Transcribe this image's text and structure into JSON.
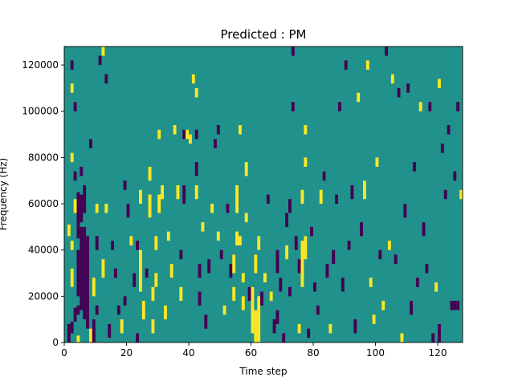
{
  "chart_data": {
    "type": "heatmap",
    "title": "Predicted : PM",
    "xlabel": "Time step",
    "ylabel": "Frequency (Hz)",
    "xlim": [
      0,
      128
    ],
    "ylim": [
      0,
      128000
    ],
    "xticks": [
      0,
      20,
      40,
      60,
      80,
      100,
      120
    ],
    "yticks": [
      0,
      20000,
      40000,
      60000,
      80000,
      100000,
      120000
    ],
    "xtick_labels": [
      "0",
      "20",
      "40",
      "60",
      "80",
      "100",
      "120"
    ],
    "ytick_labels": [
      "0",
      "20000",
      "40000",
      "60000",
      "80000",
      "100000",
      "120000"
    ],
    "grid": false,
    "colormap": "viridis",
    "background_value": 0,
    "value_colors": {
      "-1": "#440154",
      "0": "#21918c",
      "1": "#fde725"
    },
    "cells": [
      {
        "x": 1,
        "y": 0,
        "w": 1,
        "h": 8000,
        "v": -1
      },
      {
        "x": 2,
        "y": 4000,
        "w": 1,
        "h": 5000,
        "v": -1
      },
      {
        "x": 3,
        "y": 9000,
        "w": 1,
        "h": 6000,
        "v": -1
      },
      {
        "x": 4,
        "y": 0,
        "w": 1,
        "h": 3000,
        "v": 1
      },
      {
        "x": 4,
        "y": 12000,
        "w": 1,
        "h": 4000,
        "v": -1
      },
      {
        "x": 4,
        "y": 20000,
        "w": 1,
        "h": 20000,
        "v": -1
      },
      {
        "x": 4,
        "y": 45000,
        "w": 1,
        "h": 20000,
        "v": -1
      },
      {
        "x": 5,
        "y": 14000,
        "w": 1,
        "h": 36000,
        "v": -1
      },
      {
        "x": 5,
        "y": 52000,
        "w": 1,
        "h": 12000,
        "v": -1
      },
      {
        "x": 6,
        "y": 10000,
        "w": 1,
        "h": 40000,
        "v": -1
      },
      {
        "x": 6,
        "y": 56000,
        "w": 1,
        "h": 12000,
        "v": -1
      },
      {
        "x": 7,
        "y": 6000,
        "w": 1,
        "h": 40000,
        "v": -1
      },
      {
        "x": 2,
        "y": 24000,
        "w": 1,
        "h": 8000,
        "v": 1
      },
      {
        "x": 1,
        "y": 46000,
        "w": 1,
        "h": 5000,
        "v": 1
      },
      {
        "x": 2,
        "y": 40000,
        "w": 1,
        "h": 4000,
        "v": 1
      },
      {
        "x": 3,
        "y": 56000,
        "w": 1,
        "h": 6000,
        "v": 1
      },
      {
        "x": 5,
        "y": 72000,
        "w": 1,
        "h": 4000,
        "v": -1
      },
      {
        "x": 2,
        "y": 78000,
        "w": 1,
        "h": 4000,
        "v": 1
      },
      {
        "x": 3,
        "y": 70000,
        "w": 1,
        "h": 4000,
        "v": -1
      },
      {
        "x": 3,
        "y": 100000,
        "w": 1,
        "h": 4000,
        "v": -1
      },
      {
        "x": 2,
        "y": 108000,
        "w": 1,
        "h": 4000,
        "v": 1
      },
      {
        "x": 2,
        "y": 118000,
        "w": 1,
        "h": 4000,
        "v": -1
      },
      {
        "x": 8,
        "y": 0,
        "w": 1,
        "h": 6000,
        "v": 1
      },
      {
        "x": 9,
        "y": 0,
        "w": 1,
        "h": 10000,
        "v": -1
      },
      {
        "x": 9,
        "y": 20000,
        "w": 1,
        "h": 8000,
        "v": 1
      },
      {
        "x": 10,
        "y": 12000,
        "w": 1,
        "h": 4000,
        "v": -1
      },
      {
        "x": 10,
        "y": 40000,
        "w": 1,
        "h": 6000,
        "v": -1
      },
      {
        "x": 10,
        "y": 56000,
        "w": 1,
        "h": 4000,
        "v": 1
      },
      {
        "x": 8,
        "y": 84000,
        "w": 1,
        "h": 4000,
        "v": -1
      },
      {
        "x": 11,
        "y": 120000,
        "w": 1,
        "h": 4000,
        "v": -1
      },
      {
        "x": 12,
        "y": 124000,
        "w": 1,
        "h": 4000,
        "v": 1
      },
      {
        "x": 13,
        "y": 112000,
        "w": 1,
        "h": 4000,
        "v": -1
      },
      {
        "x": 13,
        "y": 56000,
        "w": 1,
        "h": 4000,
        "v": 1
      },
      {
        "x": 12,
        "y": 28000,
        "w": 1,
        "h": 8000,
        "v": 1
      },
      {
        "x": 14,
        "y": 2000,
        "w": 1,
        "h": 6000,
        "v": -1
      },
      {
        "x": 15,
        "y": 40000,
        "w": 1,
        "h": 4000,
        "v": -1
      },
      {
        "x": 16,
        "y": 28000,
        "w": 1,
        "h": 4000,
        "v": -1
      },
      {
        "x": 17,
        "y": 12000,
        "w": 1,
        "h": 4000,
        "v": -1
      },
      {
        "x": 18,
        "y": 4000,
        "w": 1,
        "h": 6000,
        "v": 1
      },
      {
        "x": 19,
        "y": 16000,
        "w": 1,
        "h": 4000,
        "v": -1
      },
      {
        "x": 19,
        "y": 66000,
        "w": 1,
        "h": 4000,
        "v": -1
      },
      {
        "x": 20,
        "y": 54000,
        "w": 1,
        "h": 6000,
        "v": -1
      },
      {
        "x": 21,
        "y": 42000,
        "w": 1,
        "h": 4000,
        "v": 1
      },
      {
        "x": 22,
        "y": 24000,
        "w": 1,
        "h": 6000,
        "v": -1
      },
      {
        "x": 23,
        "y": 40000,
        "w": 1,
        "h": 4000,
        "v": -1
      },
      {
        "x": 23,
        "y": 0,
        "w": 1,
        "h": 4000,
        "v": -1
      },
      {
        "x": 24,
        "y": 22000,
        "w": 1,
        "h": 18000,
        "v": 1
      },
      {
        "x": 24,
        "y": 60000,
        "w": 1,
        "h": 6000,
        "v": 1
      },
      {
        "x": 25,
        "y": 10000,
        "w": 1,
        "h": 8000,
        "v": 1
      },
      {
        "x": 26,
        "y": 28000,
        "w": 1,
        "h": 4000,
        "v": -1
      },
      {
        "x": 27,
        "y": 54000,
        "w": 1,
        "h": 10000,
        "v": 1
      },
      {
        "x": 27,
        "y": 70000,
        "w": 1,
        "h": 6000,
        "v": 1
      },
      {
        "x": 28,
        "y": 4000,
        "w": 1,
        "h": 6000,
        "v": 1
      },
      {
        "x": 28,
        "y": 18000,
        "w": 1,
        "h": 6000,
        "v": 1
      },
      {
        "x": 29,
        "y": 40000,
        "w": 1,
        "h": 6000,
        "v": 1
      },
      {
        "x": 29,
        "y": 24000,
        "w": 1,
        "h": 6000,
        "v": 1
      },
      {
        "x": 30,
        "y": 56000,
        "w": 1,
        "h": 8000,
        "v": 1
      },
      {
        "x": 30,
        "y": 88000,
        "w": 1,
        "h": 4000,
        "v": 1
      },
      {
        "x": 31,
        "y": 62000,
        "w": 1,
        "h": 6000,
        "v": 1
      },
      {
        "x": 32,
        "y": 10000,
        "w": 1,
        "h": 6000,
        "v": 1
      },
      {
        "x": 33,
        "y": 44000,
        "w": 1,
        "h": 4000,
        "v": 1
      },
      {
        "x": 34,
        "y": 28000,
        "w": 1,
        "h": 6000,
        "v": 1
      },
      {
        "x": 35,
        "y": 90000,
        "w": 1,
        "h": 4000,
        "v": 1
      },
      {
        "x": 36,
        "y": 62000,
        "w": 1,
        "h": 6000,
        "v": 1
      },
      {
        "x": 37,
        "y": 18000,
        "w": 1,
        "h": 6000,
        "v": 1
      },
      {
        "x": 37,
        "y": 36000,
        "w": 1,
        "h": 4000,
        "v": -1
      },
      {
        "x": 38,
        "y": 60000,
        "w": 1,
        "h": 8000,
        "v": -1
      },
      {
        "x": 38,
        "y": 88000,
        "w": 1,
        "h": 4000,
        "v": -1
      },
      {
        "x": 39,
        "y": 88000,
        "w": 1,
        "h": 4000,
        "v": 1
      },
      {
        "x": 40,
        "y": 86000,
        "w": 1,
        "h": 4000,
        "v": 1
      },
      {
        "x": 41,
        "y": 112000,
        "w": 1,
        "h": 4000,
        "v": 1
      },
      {
        "x": 42,
        "y": 106000,
        "w": 1,
        "h": 4000,
        "v": 1
      },
      {
        "x": 42,
        "y": 88000,
        "w": 1,
        "h": 4000,
        "v": -1
      },
      {
        "x": 42,
        "y": 72000,
        "w": 1,
        "h": 6000,
        "v": -1
      },
      {
        "x": 42,
        "y": 62000,
        "w": 1,
        "h": 6000,
        "v": 1
      },
      {
        "x": 43,
        "y": 28000,
        "w": 1,
        "h": 6000,
        "v": -1
      },
      {
        "x": 43,
        "y": 16000,
        "w": 1,
        "h": 6000,
        "v": -1
      },
      {
        "x": 44,
        "y": 48000,
        "w": 1,
        "h": 4000,
        "v": 1
      },
      {
        "x": 45,
        "y": 6000,
        "w": 1,
        "h": 6000,
        "v": -1
      },
      {
        "x": 46,
        "y": 30000,
        "w": 1,
        "h": 6000,
        "v": -1
      },
      {
        "x": 47,
        "y": 56000,
        "w": 1,
        "h": 4000,
        "v": 1
      },
      {
        "x": 48,
        "y": 84000,
        "w": 1,
        "h": 4000,
        "v": -1
      },
      {
        "x": 49,
        "y": 44000,
        "w": 1,
        "h": 4000,
        "v": 1
      },
      {
        "x": 49,
        "y": 90000,
        "w": 1,
        "h": 4000,
        "v": -1
      },
      {
        "x": 50,
        "y": 36000,
        "w": 1,
        "h": 4000,
        "v": -1
      },
      {
        "x": 51,
        "y": 12000,
        "w": 1,
        "h": 4000,
        "v": 1
      },
      {
        "x": 52,
        "y": 56000,
        "w": 1,
        "h": 4000,
        "v": -1
      },
      {
        "x": 53,
        "y": 28000,
        "w": 1,
        "h": 6000,
        "v": -1
      },
      {
        "x": 54,
        "y": 18000,
        "w": 1,
        "h": 6000,
        "v": 1
      },
      {
        "x": 54,
        "y": 30000,
        "w": 1,
        "h": 8000,
        "v": 1
      },
      {
        "x": 55,
        "y": 42000,
        "w": 1,
        "h": 6000,
        "v": 1
      },
      {
        "x": 55,
        "y": 56000,
        "w": 1,
        "h": 12000,
        "v": 1
      },
      {
        "x": 56,
        "y": 42000,
        "w": 1,
        "h": 4000,
        "v": 1
      },
      {
        "x": 56,
        "y": 90000,
        "w": 1,
        "h": 4000,
        "v": 1
      },
      {
        "x": 57,
        "y": 14000,
        "w": 1,
        "h": 6000,
        "v": 1
      },
      {
        "x": 57,
        "y": 26000,
        "w": 1,
        "h": 4000,
        "v": 1
      },
      {
        "x": 58,
        "y": 52000,
        "w": 1,
        "h": 4000,
        "v": 1
      },
      {
        "x": 58,
        "y": 72000,
        "w": 1,
        "h": 6000,
        "v": 1
      },
      {
        "x": 59,
        "y": 18000,
        "w": 1,
        "h": 6000,
        "v": -1
      },
      {
        "x": 60,
        "y": 4000,
        "w": 1,
        "h": 20000,
        "v": 1
      },
      {
        "x": 61,
        "y": 0,
        "w": 1,
        "h": 14000,
        "v": 1
      },
      {
        "x": 61,
        "y": 30000,
        "w": 1,
        "h": 8000,
        "v": 1
      },
      {
        "x": 62,
        "y": 0,
        "w": 1,
        "h": 20000,
        "v": 1
      },
      {
        "x": 62,
        "y": 40000,
        "w": 1,
        "h": 6000,
        "v": 1
      },
      {
        "x": 63,
        "y": 16000,
        "w": 1,
        "h": 6000,
        "v": -1
      },
      {
        "x": 64,
        "y": 26000,
        "w": 1,
        "h": 4000,
        "v": 1
      },
      {
        "x": 65,
        "y": 60000,
        "w": 1,
        "h": 4000,
        "v": -1
      },
      {
        "x": 66,
        "y": 18000,
        "w": 1,
        "h": 4000,
        "v": 1
      },
      {
        "x": 67,
        "y": 4000,
        "w": 1,
        "h": 6000,
        "v": -1
      },
      {
        "x": 68,
        "y": 8000,
        "w": 1,
        "h": 6000,
        "v": -1
      },
      {
        "x": 68,
        "y": 30000,
        "w": 1,
        "h": 10000,
        "v": -1
      },
      {
        "x": 69,
        "y": 22000,
        "w": 1,
        "h": 6000,
        "v": -1
      },
      {
        "x": 70,
        "y": 0,
        "w": 1,
        "h": 4000,
        "v": -1
      },
      {
        "x": 71,
        "y": 36000,
        "w": 1,
        "h": 6000,
        "v": 1
      },
      {
        "x": 71,
        "y": 50000,
        "w": 1,
        "h": 6000,
        "v": -1
      },
      {
        "x": 72,
        "y": 56000,
        "w": 1,
        "h": 6000,
        "v": -1
      },
      {
        "x": 72,
        "y": 20000,
        "w": 1,
        "h": 4000,
        "v": -1
      },
      {
        "x": 73,
        "y": 100000,
        "w": 1,
        "h": 4000,
        "v": -1
      },
      {
        "x": 73,
        "y": 124000,
        "w": 1,
        "h": 4000,
        "v": -1
      },
      {
        "x": 74,
        "y": 40000,
        "w": 1,
        "h": 6000,
        "v": -1
      },
      {
        "x": 75,
        "y": 4000,
        "w": 1,
        "h": 4000,
        "v": 1
      },
      {
        "x": 75,
        "y": 30000,
        "w": 1,
        "h": 6000,
        "v": -1
      },
      {
        "x": 76,
        "y": 24000,
        "w": 1,
        "h": 20000,
        "v": 1
      },
      {
        "x": 76,
        "y": 60000,
        "w": 1,
        "h": 6000,
        "v": 1
      },
      {
        "x": 77,
        "y": 36000,
        "w": 1,
        "h": 10000,
        "v": 1
      },
      {
        "x": 77,
        "y": 76000,
        "w": 1,
        "h": 4000,
        "v": 1
      },
      {
        "x": 77,
        "y": 90000,
        "w": 1,
        "h": 4000,
        "v": 1
      },
      {
        "x": 78,
        "y": 2000,
        "w": 1,
        "h": 4000,
        "v": -1
      },
      {
        "x": 79,
        "y": 46000,
        "w": 1,
        "h": 4000,
        "v": -1
      },
      {
        "x": 80,
        "y": 22000,
        "w": 1,
        "h": 4000,
        "v": -1
      },
      {
        "x": 81,
        "y": 12000,
        "w": 1,
        "h": 4000,
        "v": -1
      },
      {
        "x": 82,
        "y": 60000,
        "w": 1,
        "h": 6000,
        "v": 1
      },
      {
        "x": 83,
        "y": 70000,
        "w": 1,
        "h": 4000,
        "v": -1
      },
      {
        "x": 84,
        "y": 28000,
        "w": 1,
        "h": 6000,
        "v": -1
      },
      {
        "x": 85,
        "y": 4000,
        "w": 1,
        "h": 4000,
        "v": 1
      },
      {
        "x": 86,
        "y": 34000,
        "w": 1,
        "h": 6000,
        "v": -1
      },
      {
        "x": 87,
        "y": 60000,
        "w": 1,
        "h": 4000,
        "v": -1
      },
      {
        "x": 88,
        "y": 100000,
        "w": 1,
        "h": 4000,
        "v": -1
      },
      {
        "x": 89,
        "y": 22000,
        "w": 1,
        "h": 6000,
        "v": -1
      },
      {
        "x": 90,
        "y": 118000,
        "w": 1,
        "h": 4000,
        "v": -1
      },
      {
        "x": 91,
        "y": 40000,
        "w": 1,
        "h": 4000,
        "v": -1
      },
      {
        "x": 92,
        "y": 62000,
        "w": 1,
        "h": 6000,
        "v": -1
      },
      {
        "x": 93,
        "y": 4000,
        "w": 1,
        "h": 6000,
        "v": -1
      },
      {
        "x": 94,
        "y": 104000,
        "w": 1,
        "h": 4000,
        "v": 1
      },
      {
        "x": 95,
        "y": 46000,
        "w": 1,
        "h": 6000,
        "v": -1
      },
      {
        "x": 96,
        "y": 62000,
        "w": 1,
        "h": 8000,
        "v": 1
      },
      {
        "x": 97,
        "y": 118000,
        "w": 1,
        "h": 4000,
        "v": 1
      },
      {
        "x": 98,
        "y": 24000,
        "w": 1,
        "h": 4000,
        "v": 1
      },
      {
        "x": 99,
        "y": 8000,
        "w": 1,
        "h": 4000,
        "v": 1
      },
      {
        "x": 100,
        "y": 76000,
        "w": 1,
        "h": 4000,
        "v": 1
      },
      {
        "x": 101,
        "y": 36000,
        "w": 1,
        "h": 4000,
        "v": -1
      },
      {
        "x": 102,
        "y": 14000,
        "w": 1,
        "h": 4000,
        "v": 1
      },
      {
        "x": 103,
        "y": 124000,
        "w": 1,
        "h": 4000,
        "v": -1
      },
      {
        "x": 104,
        "y": 40000,
        "w": 1,
        "h": 4000,
        "v": 1
      },
      {
        "x": 105,
        "y": 112000,
        "w": 1,
        "h": 4000,
        "v": 1
      },
      {
        "x": 106,
        "y": 34000,
        "w": 1,
        "h": 4000,
        "v": -1
      },
      {
        "x": 107,
        "y": 106000,
        "w": 1,
        "h": 4000,
        "v": -1
      },
      {
        "x": 108,
        "y": 0,
        "w": 1,
        "h": 4000,
        "v": 1
      },
      {
        "x": 109,
        "y": 54000,
        "w": 1,
        "h": 6000,
        "v": -1
      },
      {
        "x": 110,
        "y": 108000,
        "w": 1,
        "h": 4000,
        "v": -1
      },
      {
        "x": 111,
        "y": 12000,
        "w": 1,
        "h": 6000,
        "v": -1
      },
      {
        "x": 112,
        "y": 74000,
        "w": 1,
        "h": 4000,
        "v": -1
      },
      {
        "x": 113,
        "y": 24000,
        "w": 1,
        "h": 4000,
        "v": -1
      },
      {
        "x": 114,
        "y": 100000,
        "w": 1,
        "h": 4000,
        "v": 1
      },
      {
        "x": 115,
        "y": 46000,
        "w": 1,
        "h": 6000,
        "v": -1
      },
      {
        "x": 116,
        "y": 30000,
        "w": 1,
        "h": 4000,
        "v": -1
      },
      {
        "x": 117,
        "y": 100000,
        "w": 1,
        "h": 4000,
        "v": -1
      },
      {
        "x": 118,
        "y": 0,
        "w": 1,
        "h": 4000,
        "v": -1
      },
      {
        "x": 119,
        "y": 22000,
        "w": 1,
        "h": 4000,
        "v": 1
      },
      {
        "x": 120,
        "y": 0,
        "w": 1,
        "h": 8000,
        "v": -1
      },
      {
        "x": 120,
        "y": 110000,
        "w": 1,
        "h": 4000,
        "v": 1
      },
      {
        "x": 121,
        "y": 82000,
        "w": 1,
        "h": 4000,
        "v": -1
      },
      {
        "x": 122,
        "y": 62000,
        "w": 1,
        "h": 4000,
        "v": -1
      },
      {
        "x": 123,
        "y": 90000,
        "w": 1,
        "h": 4000,
        "v": -1
      },
      {
        "x": 124,
        "y": 14000,
        "w": 1,
        "h": 4000,
        "v": -1
      },
      {
        "x": 125,
        "y": 14000,
        "w": 1,
        "h": 4000,
        "v": -1
      },
      {
        "x": 126,
        "y": 14000,
        "w": 1,
        "h": 4000,
        "v": -1
      },
      {
        "x": 127,
        "y": 62000,
        "w": 1,
        "h": 4000,
        "v": 1
      },
      {
        "x": 126,
        "y": 100000,
        "w": 1,
        "h": 4000,
        "v": -1
      },
      {
        "x": 125,
        "y": 70000,
        "w": 1,
        "h": 4000,
        "v": -1
      }
    ]
  }
}
